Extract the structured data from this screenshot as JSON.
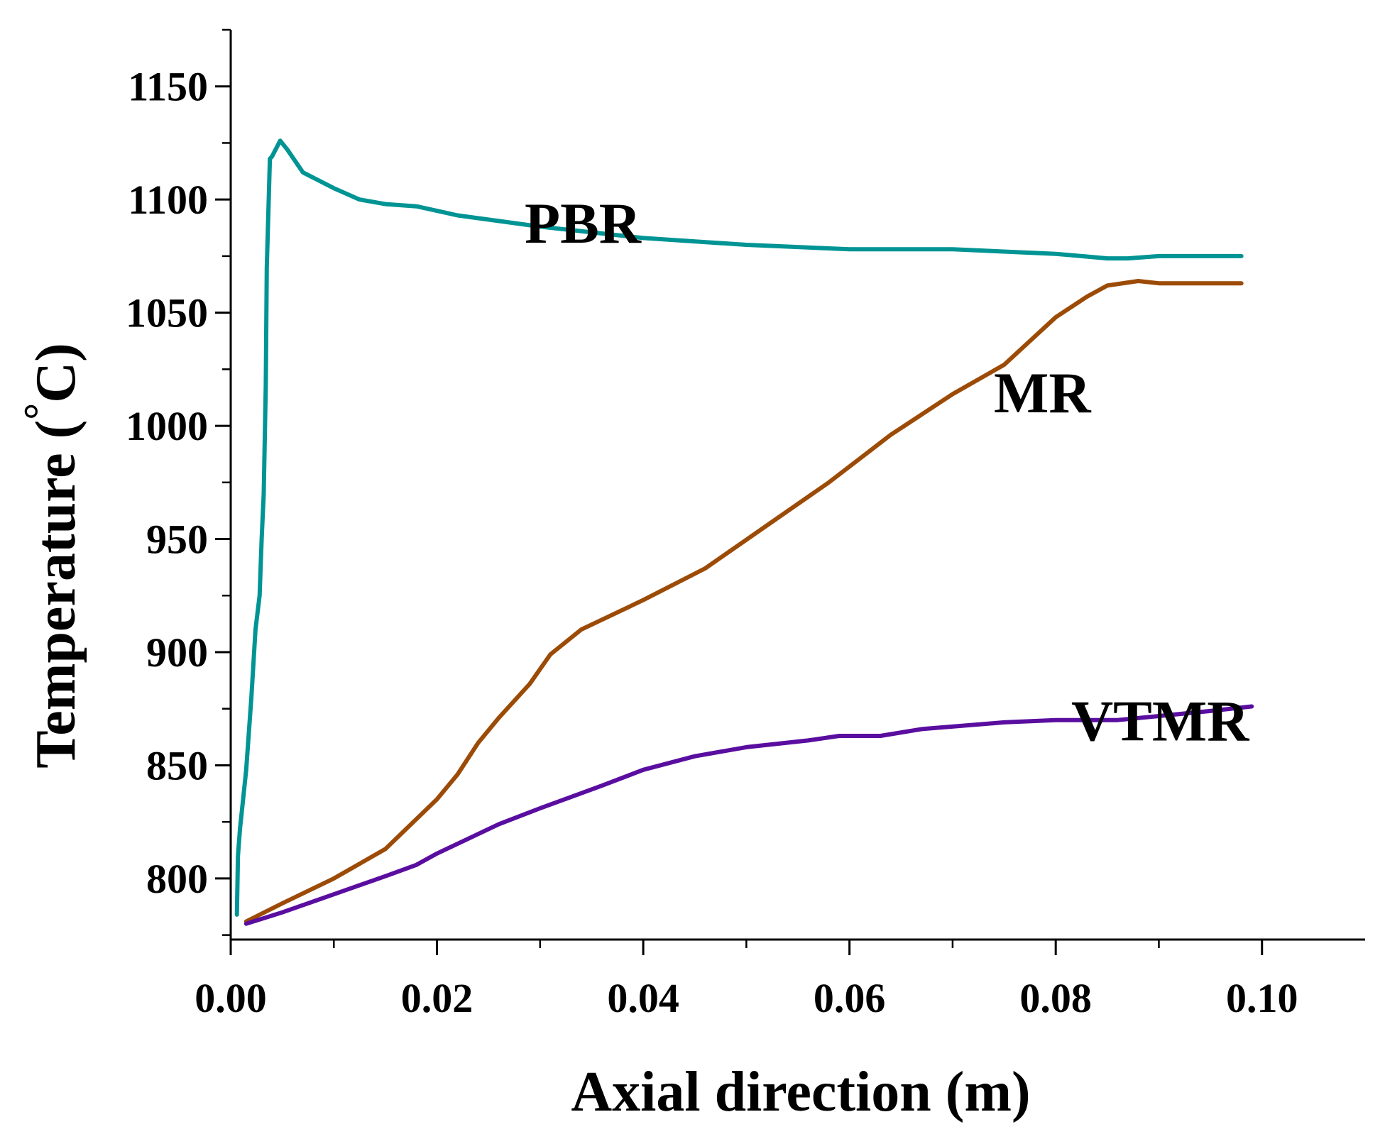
{
  "chart_data": {
    "type": "line",
    "title": "",
    "xlabel": "Axial direction (m)",
    "ylabel_text": "Temperature (",
    "ylabel_degree": "°",
    "ylabel_unit": "C)",
    "xlim": [
      0.0,
      0.11
    ],
    "ylim": [
      773,
      1175
    ],
    "x_ticks": [
      0.0,
      0.02,
      0.04,
      0.06,
      0.08,
      0.1
    ],
    "x_tick_labels": [
      "0.00",
      "0.02",
      "0.04",
      "0.06",
      "0.08",
      "0.10"
    ],
    "y_ticks": [
      800,
      850,
      900,
      950,
      1000,
      1050,
      1100,
      1150
    ],
    "y_tick_labels": [
      "800",
      "850",
      "900",
      "950",
      "1000",
      "1050",
      "1100",
      "1150"
    ],
    "grid": false,
    "series": [
      {
        "name": "PBR",
        "color": "#009494",
        "x": [
          0.0006,
          0.0007,
          0.0009,
          0.0015,
          0.002,
          0.0024,
          0.0028,
          0.003,
          0.0032,
          0.0034,
          0.0035,
          0.0038,
          0.004,
          0.0048,
          0.0055,
          0.007,
          0.01,
          0.0125,
          0.015,
          0.018,
          0.022,
          0.03,
          0.04,
          0.05,
          0.06,
          0.07,
          0.08,
          0.085,
          0.087,
          0.09,
          0.098
        ],
        "y": [
          784,
          810,
          822,
          848,
          880,
          910,
          925,
          950,
          970,
          1018,
          1070,
          1118,
          1119,
          1126,
          1122,
          1112,
          1105,
          1100,
          1098,
          1097,
          1093,
          1088,
          1083,
          1080,
          1078,
          1078,
          1076,
          1074,
          1074,
          1075,
          1075
        ]
      },
      {
        "name": "MR",
        "color": "#9c4b07",
        "x": [
          0.0015,
          0.005,
          0.01,
          0.015,
          0.02,
          0.022,
          0.024,
          0.026,
          0.029,
          0.031,
          0.034,
          0.04,
          0.046,
          0.052,
          0.058,
          0.064,
          0.07,
          0.075,
          0.08,
          0.083,
          0.085,
          0.088,
          0.09,
          0.098
        ],
        "y": [
          781,
          789,
          800,
          813,
          835,
          846,
          860,
          871,
          886,
          899,
          910,
          923,
          937,
          956,
          975,
          996,
          1014,
          1027,
          1048,
          1057,
          1062,
          1064,
          1063,
          1063
        ]
      },
      {
        "name": "VTMR",
        "color": "#5a0ea0",
        "x": [
          0.0015,
          0.005,
          0.01,
          0.015,
          0.018,
          0.02,
          0.026,
          0.03,
          0.033,
          0.036,
          0.04,
          0.045,
          0.05,
          0.056,
          0.059,
          0.063,
          0.067,
          0.075,
          0.08,
          0.086,
          0.095,
          0.099
        ],
        "y": [
          780,
          785,
          793,
          801,
          806,
          811,
          824,
          831,
          836,
          841,
          848,
          854,
          858,
          861,
          863,
          863,
          866,
          869,
          870,
          870,
          874,
          876
        ]
      }
    ],
    "annotations": [
      {
        "text": "PBR",
        "x": 0.0285,
        "y": 1081
      },
      {
        "text": "MR",
        "x": 0.074,
        "y": 1006
      },
      {
        "text": "VTMR",
        "x": 0.0815,
        "y": 861
      }
    ]
  }
}
